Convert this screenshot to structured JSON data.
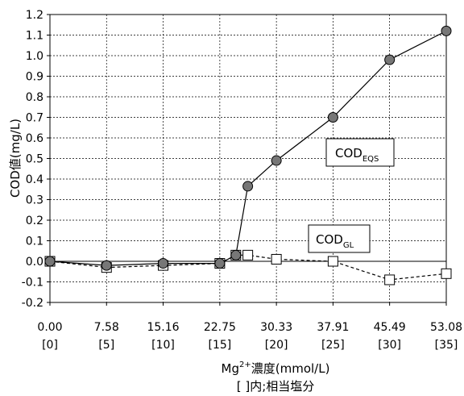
{
  "chart_data": {
    "type": "line",
    "ylabel": "COD値(mg/L)",
    "xlabel": {
      "prefix": "Mg",
      "superscript": "2+",
      "suffix": "濃度(mmol/L)",
      "line2": "[ ]内;相当塩分"
    },
    "ylim": [
      -0.2,
      1.2
    ],
    "yticks": [
      "1.2",
      "1.1",
      "1.0",
      "0.9",
      "0.8",
      "0.7",
      "0.6",
      "0.5",
      "0.4",
      "0.3",
      "0.2",
      "0.1",
      "0.0",
      "-0.1",
      "-0.2"
    ],
    "xlim": [
      0,
      53.08
    ],
    "xticks": [
      {
        "x": 0,
        "label": "0.00",
        "label2": "[0]"
      },
      {
        "x": 7.58,
        "label": "7.58",
        "label2": "[5]"
      },
      {
        "x": 15.16,
        "label": "15.16",
        "label2": "[10]"
      },
      {
        "x": 22.75,
        "label": "22.75",
        "label2": "[15]"
      },
      {
        "x": 30.33,
        "label": "30.33",
        "label2": "[20]"
      },
      {
        "x": 37.91,
        "label": "37.91",
        "label2": "[25]"
      },
      {
        "x": 45.49,
        "label": "45.49",
        "label2": "[30]"
      },
      {
        "x": 53.08,
        "label": "53.08",
        "label2": "[35]"
      }
    ],
    "grid": true,
    "series": [
      {
        "name": "COD_EQS",
        "label": {
          "main": "COD",
          "sub": "EQS"
        },
        "line": "solid",
        "marker": "filled-circle",
        "x": [
          0,
          7.58,
          15.16,
          22.75,
          24.9,
          26.5,
          30.33,
          37.91,
          45.49,
          53.08
        ],
        "y": [
          0.0,
          -0.02,
          -0.01,
          -0.01,
          0.03,
          0.365,
          0.49,
          0.7,
          0.98,
          1.12
        ]
      },
      {
        "name": "COD_GL",
        "label": {
          "main": "COD",
          "sub": "GL"
        },
        "line": "dashed",
        "marker": "open-square",
        "x": [
          0,
          7.58,
          15.16,
          22.75,
          24.9,
          26.5,
          30.33,
          37.91,
          45.49,
          53.08
        ],
        "y": [
          0.0,
          -0.03,
          -0.02,
          -0.01,
          0.03,
          0.03,
          0.01,
          0.0,
          -0.09,
          -0.06
        ]
      }
    ]
  }
}
